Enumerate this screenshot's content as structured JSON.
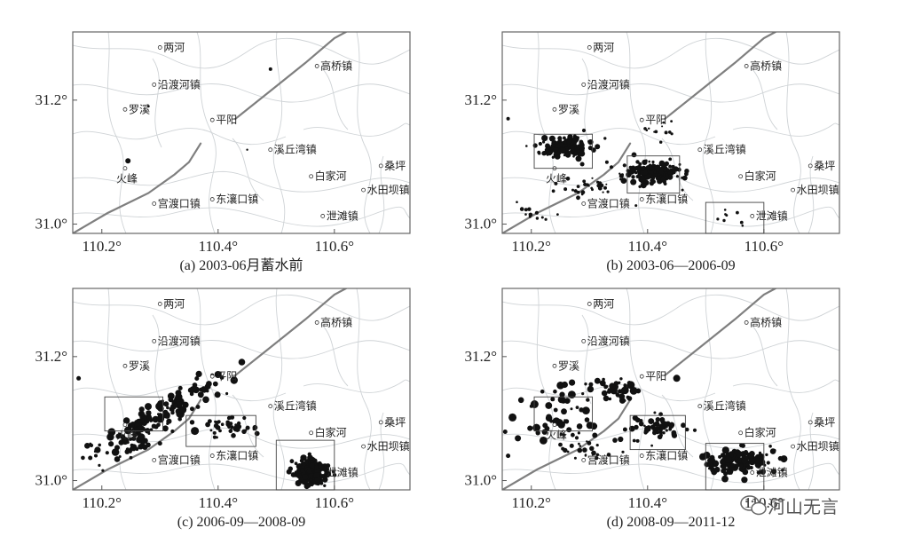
{
  "map": {
    "xlim": [
      110.15,
      110.73
    ],
    "ylim": [
      30.985,
      31.31
    ],
    "x_ticks": [
      "110.2°",
      "110.4°",
      "110.6°"
    ],
    "y_ticks": [
      "31.2°",
      "31.0°"
    ],
    "towns": [
      {
        "name": "两河",
        "lon": 110.3,
        "lat": 31.285
      },
      {
        "name": "沿渡河镇",
        "lon": 110.29,
        "lat": 31.225
      },
      {
        "name": "罗溪",
        "lon": 110.24,
        "lat": 31.185
      },
      {
        "name": "平阳",
        "lon": 110.39,
        "lat": 31.168
      },
      {
        "name": "高桥镇",
        "lon": 110.57,
        "lat": 31.255
      },
      {
        "name": "溪丘湾镇",
        "lon": 110.49,
        "lat": 31.12
      },
      {
        "name": "火峰",
        "lon": 110.24,
        "lat": 31.09
      },
      {
        "name": "白家河",
        "lon": 110.56,
        "lat": 31.077
      },
      {
        "name": "桑坪",
        "lon": 110.68,
        "lat": 31.094
      },
      {
        "name": "水田坝镇",
        "lon": 110.65,
        "lat": 31.055
      },
      {
        "name": "宫渡口镇",
        "lon": 110.29,
        "lat": 31.033
      },
      {
        "name": "东瀼口镇",
        "lon": 110.39,
        "lat": 31.04
      },
      {
        "name": "泄滩镇",
        "lon": 110.58,
        "lat": 31.013
      }
    ]
  },
  "panels": [
    {
      "caption": "(a) 2003-06月蓄水前"
    },
    {
      "caption": "(b) 2003-06—2006-09"
    },
    {
      "caption": "(c) 2006-09—2008-09"
    },
    {
      "caption": "(d) 2008-09—2011-12"
    }
  ],
  "watermark": {
    "text": "河山无言",
    "icon": "wechat-icon"
  }
}
